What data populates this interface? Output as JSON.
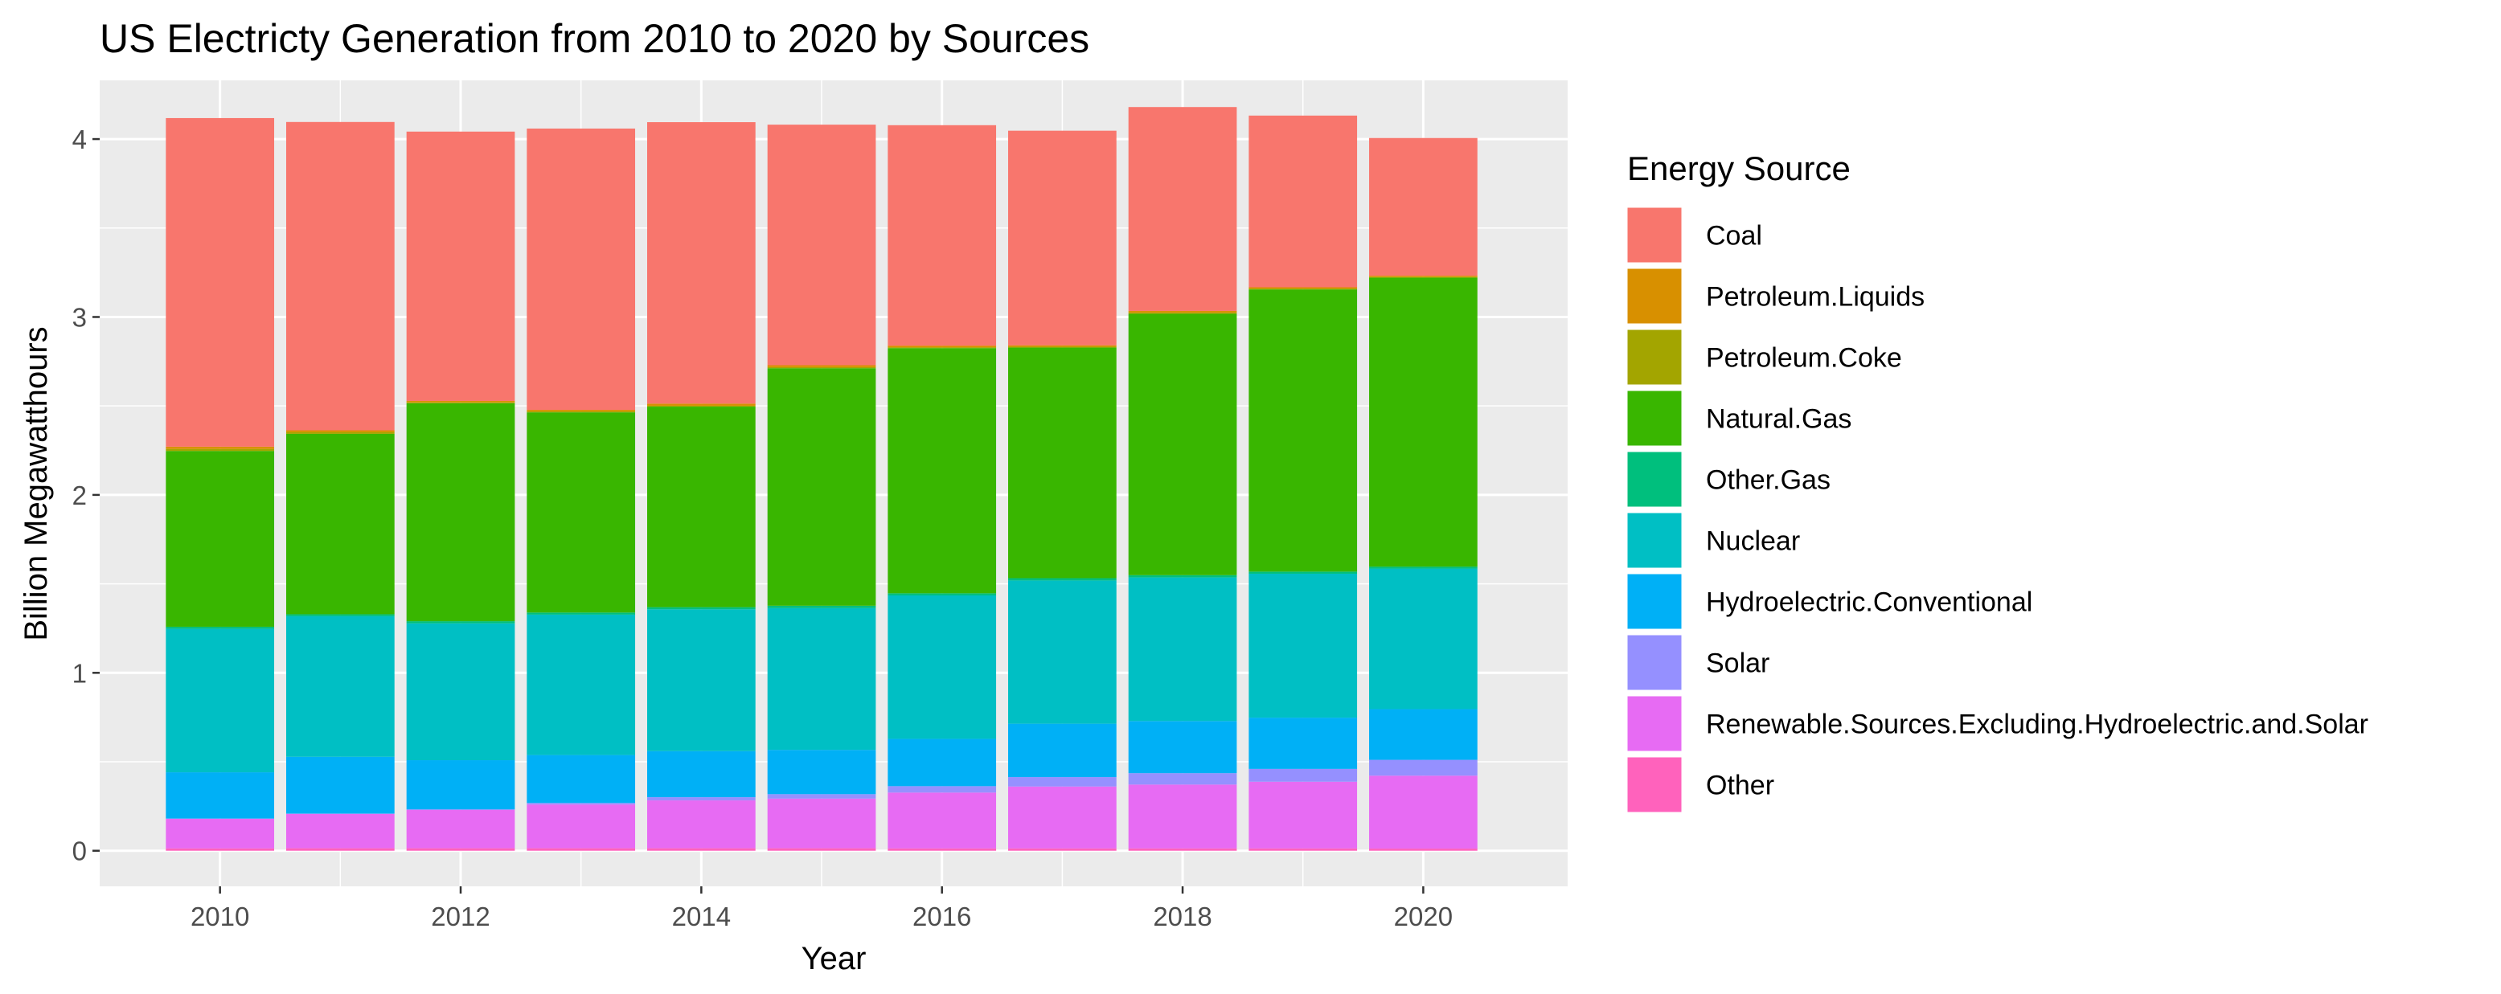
{
  "chart_data": {
    "type": "bar",
    "stacked": true,
    "title": "US Electricty Generation from 2010 to 2020 by Sources",
    "xlabel": "Year",
    "ylabel": "Billion Megawatthours",
    "x": [
      2010,
      2011,
      2012,
      2013,
      2014,
      2015,
      2016,
      2017,
      2018,
      2019,
      2020
    ],
    "x_ticks": [
      "2010",
      "2012",
      "2014",
      "2016",
      "2018",
      "2020"
    ],
    "xlim": [
      2009,
      2021.2
    ],
    "ylim": [
      -0.2,
      4.33
    ],
    "y_ticks": [
      0,
      1,
      2,
      3,
      4
    ],
    "y_tick_labels": [
      "0",
      "1",
      "2",
      "3",
      "4"
    ],
    "grid": true,
    "legend_title": "Energy Source",
    "legend_position": "right",
    "series": [
      {
        "name": "Coal",
        "color": "#F8766D",
        "values": [
          1.847,
          1.733,
          1.514,
          1.581,
          1.582,
          1.352,
          1.239,
          1.206,
          1.146,
          0.965,
          0.774
        ]
      },
      {
        "name": "Petroleum.Liquids",
        "color": "#D89000",
        "values": [
          0.013,
          0.011,
          0.008,
          0.009,
          0.012,
          0.011,
          0.009,
          0.008,
          0.01,
          0.007,
          0.007
        ]
      },
      {
        "name": "Petroleum.Coke",
        "color": "#A3A500",
        "values": [
          0.011,
          0.009,
          0.005,
          0.005,
          0.005,
          0.006,
          0.005,
          0.005,
          0.006,
          0.005,
          0.004
        ]
      },
      {
        "name": "Natural.Gas",
        "color": "#39B600",
        "values": [
          0.988,
          1.014,
          1.225,
          1.125,
          1.127,
          1.335,
          1.378,
          1.296,
          1.469,
          1.586,
          1.624
        ]
      },
      {
        "name": "Other.Gas",
        "color": "#00BF7D",
        "values": [
          0.011,
          0.011,
          0.012,
          0.012,
          0.012,
          0.013,
          0.012,
          0.013,
          0.013,
          0.012,
          0.011
        ]
      },
      {
        "name": "Nuclear",
        "color": "#00BFC4",
        "values": [
          0.807,
          0.79,
          0.769,
          0.789,
          0.797,
          0.797,
          0.806,
          0.805,
          0.807,
          0.809,
          0.79
        ]
      },
      {
        "name": "Hydroelectric.Conventional",
        "color": "#00B0F6",
        "values": [
          0.26,
          0.319,
          0.276,
          0.269,
          0.259,
          0.249,
          0.266,
          0.3,
          0.293,
          0.288,
          0.285
        ]
      },
      {
        "name": "Solar",
        "color": "#9590FF",
        "values": [
          0.001,
          0.002,
          0.004,
          0.009,
          0.018,
          0.025,
          0.036,
          0.053,
          0.064,
          0.072,
          0.089
        ]
      },
      {
        "name": "Renewable.Sources.Excluding.Hydroelectric.and.Solar",
        "color": "#E76BF3",
        "values": [
          0.167,
          0.193,
          0.215,
          0.246,
          0.269,
          0.279,
          0.314,
          0.348,
          0.359,
          0.375,
          0.41
        ]
      },
      {
        "name": "Other",
        "color": "#FF62BC",
        "values": [
          0.013,
          0.014,
          0.014,
          0.014,
          0.014,
          0.014,
          0.013,
          0.013,
          0.013,
          0.013,
          0.012
        ]
      }
    ]
  }
}
